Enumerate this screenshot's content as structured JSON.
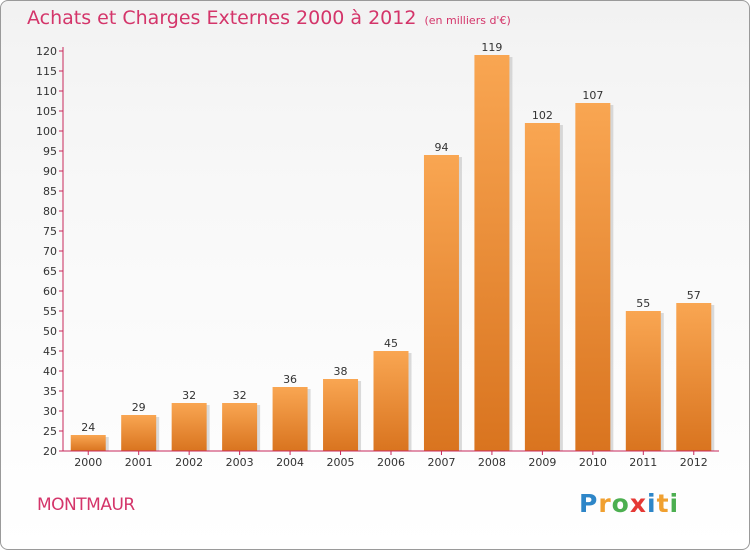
{
  "title": "Achats et Charges Externes 2000 à 2012",
  "subtitle": "(en milliers d'€)",
  "commune": "MONTMAUR",
  "brand": {
    "letters": [
      "P",
      "r",
      "o",
      "x",
      "i",
      "t",
      "i"
    ]
  },
  "colors": {
    "accent": "#d4356a",
    "bar_light": "#f9a652",
    "bar_dark": "#d9741f",
    "axis": "#c8285a",
    "brand_letters": [
      "#2e86c8",
      "#f0a030",
      "#4caf50",
      "#e53935",
      "#2e86c8",
      "#f0a030",
      "#4caf50"
    ]
  },
  "chart_data": {
    "type": "bar",
    "categories": [
      "2000",
      "2001",
      "2002",
      "2003",
      "2004",
      "2005",
      "2006",
      "2007",
      "2008",
      "2009",
      "2010",
      "2011",
      "2012"
    ],
    "values": [
      24,
      29,
      32,
      32,
      36,
      38,
      45,
      94,
      119,
      102,
      107,
      55,
      57
    ],
    "ylim": [
      20,
      120
    ],
    "yticks": [
      20,
      25,
      30,
      35,
      40,
      45,
      50,
      55,
      60,
      65,
      70,
      75,
      80,
      85,
      90,
      95,
      100,
      105,
      110,
      115,
      120
    ],
    "grid": false
  }
}
